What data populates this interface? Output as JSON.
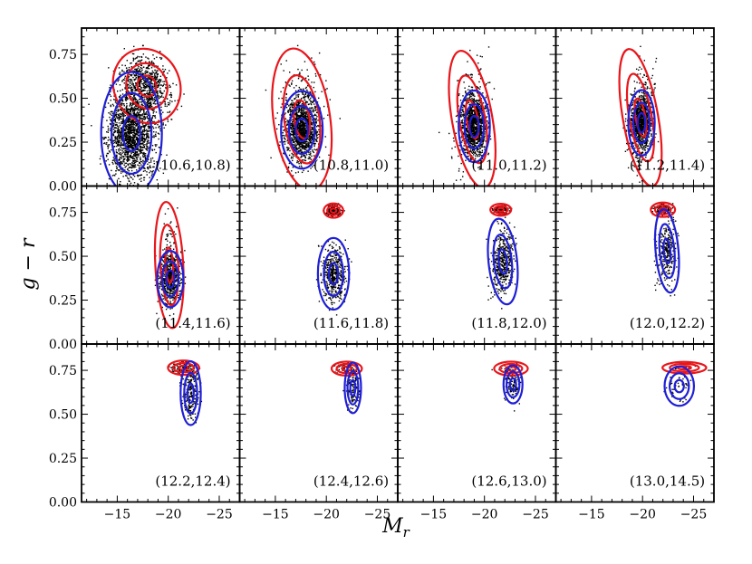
{
  "chart_data": {
    "type": "scatter",
    "layout": {
      "rows": 3,
      "cols": 4
    },
    "xlabel": "M_r",
    "ylabel": "g − r",
    "xlim": [
      -11.5,
      -27
    ],
    "ylim": [
      0.0,
      0.9
    ],
    "x_ticks": [
      -15,
      -20,
      -25
    ],
    "x_tick_labels": [
      "−15",
      "−20",
      "−25"
    ],
    "y_ticks": [
      0.0,
      0.25,
      0.5,
      0.75
    ],
    "y_tick_labels": [
      "0.00",
      "0.25",
      "0.50",
      "0.75"
    ],
    "colors": {
      "points": "#000000",
      "red_contours": "#e8161b",
      "blue_contours": "#1f1fd6"
    },
    "panels": [
      {
        "label": "(10.6,10.8)",
        "n_points": 2600,
        "red": {
          "cx": -17.9,
          "cy": 0.57,
          "sx": 0.9,
          "sy": 0.06,
          "rot": 22,
          "levels": [
            1.0,
            2.2,
            3.6
          ]
        },
        "blue": {
          "cx": -16.4,
          "cy": 0.3,
          "sx": 0.85,
          "sy": 0.1,
          "rot": 0,
          "levels": [
            1.0,
            2.3,
            3.5
          ]
        }
      },
      {
        "label": "(10.8,11.0)",
        "n_points": 1500,
        "red": {
          "cx": -17.6,
          "cy": 0.38,
          "sx": 0.75,
          "sy": 0.11,
          "rot": 8,
          "levels": [
            1.0,
            2.3,
            3.7
          ]
        },
        "blue": {
          "cx": -17.6,
          "cy": 0.32,
          "sx": 0.6,
          "sy": 0.065,
          "rot": 0,
          "levels": [
            1.0,
            2.1,
            3.4
          ]
        }
      },
      {
        "label": "(11.0,11.2)",
        "n_points": 1300,
        "red": {
          "cx": -18.8,
          "cy": 0.38,
          "sx": 0.55,
          "sy": 0.11,
          "rot": 10,
          "levels": [
            1.0,
            2.3,
            3.6
          ]
        },
        "blue": {
          "cx": -19.0,
          "cy": 0.34,
          "sx": 0.45,
          "sy": 0.06,
          "rot": 0,
          "levels": [
            1.0,
            2.1,
            3.4
          ]
        }
      },
      {
        "label": "(11.2,11.4)",
        "n_points": 1200,
        "red": {
          "cx": -19.8,
          "cy": 0.39,
          "sx": 0.48,
          "sy": 0.11,
          "rot": 10,
          "levels": [
            1.0,
            2.3,
            3.6
          ]
        },
        "blue": {
          "cx": -19.9,
          "cy": 0.36,
          "sx": 0.38,
          "sy": 0.055,
          "rot": 0,
          "levels": [
            1.0,
            2.1,
            3.4
          ]
        }
      },
      {
        "label": "(11.4,11.6)",
        "n_points": 700,
        "red": {
          "cx": -20.1,
          "cy": 0.45,
          "sx": 0.38,
          "sy": 0.1,
          "rot": 3,
          "levels": [
            1.0,
            2.3,
            3.6
          ]
        },
        "blue": {
          "cx": -20.2,
          "cy": 0.37,
          "sx": 0.4,
          "sy": 0.05,
          "rot": 0,
          "levels": [
            1.0,
            2.0,
            3.2
          ]
        }
      },
      {
        "label": "(11.6,11.8)",
        "n_points": 700,
        "red": {
          "cx": -20.7,
          "cy": 0.76,
          "sx": 0.28,
          "sy": 0.012,
          "rot": 0,
          "levels": [
            1.0,
            2.2,
            3.4
          ]
        },
        "blue": {
          "cx": -20.7,
          "cy": 0.4,
          "sx": 0.45,
          "sy": 0.06,
          "rot": 0,
          "levels": [
            1.0,
            2.1,
            3.4
          ]
        }
      },
      {
        "label": "(11.8,12.0)",
        "n_points": 650,
        "red": {
          "cx": -21.6,
          "cy": 0.765,
          "sx": 0.3,
          "sy": 0.01,
          "rot": 0,
          "levels": [
            1.0,
            2.2,
            3.4
          ]
        },
        "blue": {
          "cx": -21.8,
          "cy": 0.47,
          "sx": 0.4,
          "sy": 0.07,
          "rot": 6,
          "levels": [
            1.0,
            2.2,
            3.5
          ]
        }
      },
      {
        "label": "(12.0,12.2)",
        "n_points": 420,
        "red": {
          "cx": -22.0,
          "cy": 0.765,
          "sx": 0.35,
          "sy": 0.012,
          "rot": 0,
          "levels": [
            1.0,
            2.2,
            3.4
          ]
        },
        "blue": {
          "cx": -22.4,
          "cy": 0.53,
          "sx": 0.33,
          "sy": 0.07,
          "rot": 5,
          "levels": [
            1.0,
            2.2,
            3.4
          ]
        }
      },
      {
        "label": "(12.2,12.4)",
        "n_points": 330,
        "red": {
          "cx": -21.5,
          "cy": 0.765,
          "sx": 0.45,
          "sy": 0.012,
          "rot": 0,
          "levels": [
            1.0,
            2.2,
            3.4
          ]
        },
        "blue": {
          "cx": -22.2,
          "cy": 0.62,
          "sx": 0.3,
          "sy": 0.055,
          "rot": 0,
          "levels": [
            1.0,
            2.1,
            3.3
          ]
        }
      },
      {
        "label": "(12.4,12.6)",
        "n_points": 200,
        "red": {
          "cx": -22.0,
          "cy": 0.76,
          "sx": 0.45,
          "sy": 0.012,
          "rot": 0,
          "levels": [
            1.0,
            2.2,
            3.3
          ]
        },
        "blue": {
          "cx": -22.6,
          "cy": 0.65,
          "sx": 0.25,
          "sy": 0.045,
          "rot": 0,
          "levels": [
            1.0,
            2.1,
            3.2
          ]
        }
      },
      {
        "label": "(12.6,13.0)",
        "n_points": 150,
        "red": {
          "cx": -22.6,
          "cy": 0.76,
          "sx": 0.5,
          "sy": 0.012,
          "rot": 0,
          "levels": [
            1.0,
            2.2,
            3.3
          ]
        },
        "blue": {
          "cx": -22.8,
          "cy": 0.67,
          "sx": 0.3,
          "sy": 0.035,
          "rot": 0,
          "levels": [
            1.0,
            2.1,
            3.1
          ]
        }
      },
      {
        "label": "(13.0,14.5)",
        "n_points": 60,
        "red": {
          "cx": -24.1,
          "cy": 0.765,
          "sx": 0.65,
          "sy": 0.01,
          "rot": 0,
          "levels": [
            1.0,
            2.2,
            3.3
          ]
        },
        "blue": {
          "cx": -23.6,
          "cy": 0.66,
          "sx": 0.45,
          "sy": 0.035,
          "rot": 0,
          "levels": [
            1.0,
            2.1,
            3.2
          ]
        }
      }
    ]
  }
}
